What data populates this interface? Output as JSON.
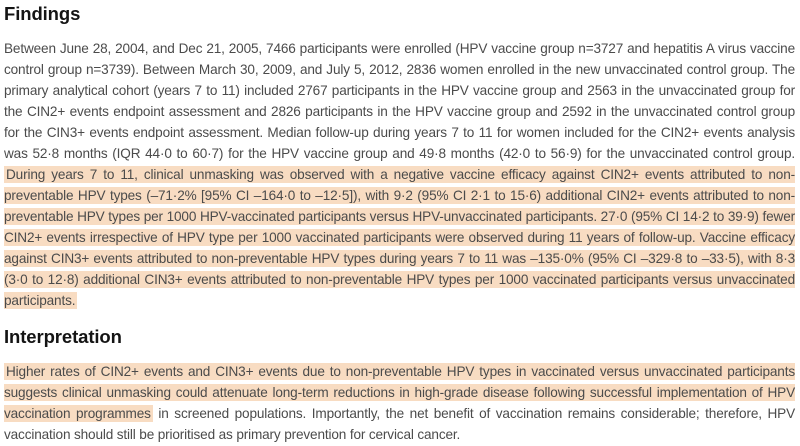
{
  "page": {
    "background_color": "#ffffff",
    "body_text_color": "#4b4b4b",
    "heading_color": "#141414",
    "highlight_color": "#f8dcc2"
  },
  "sections": [
    {
      "heading": "Findings",
      "runs": [
        {
          "highlight": false,
          "text": "Between June 28, 2004, and Dec 21, 2005, 7466 participants were enrolled (HPV vaccine group n=3727 and hepatitis A virus vaccine control group n=3739). Between March 30, 2009, and July 5, 2012, 2836 women enrolled in the new unvaccinated control group. The primary analytical cohort (years 7 to 11) included 2767 participants in the HPV vaccine group and 2563 in the unvaccinated group for the CIN2+ events endpoint assessment and 2826 participants in the HPV vaccine group and 2592 in the unvaccinated control group for the CIN3+ events endpoint assessment. Median follow-up during years 7 to 11 for women included for the CIN2+ events analysis was 52·8 months (IQR 44·0 to 60·7) for the HPV vaccine group and 49·8 months (42·0 to 56·9) for the unvaccinated control group. "
        },
        {
          "highlight": true,
          "text": "During years 7 to 11, clinical unmasking was observed with a negative vaccine efficacy against CIN2+ events attributed to non-preventable HPV types (–71·2% [95% CI –164·0 to –12·5]), with 9·2 (95% CI 2·1 to 15·6) additional CIN2+ events attributed to non-preventable HPV types per 1000 HPV-vaccinated participants versus HPV-unvaccinated participants. 27·0 (95% CI 14·2 to 39·9) fewer CIN2+ events irrespective of HPV type per 1000 vaccinated participants were observed during 11 years of follow-up. Vaccine efficacy against CIN3+ events attributed to non-preventable HPV types during years 7 to 11 was –135·0% (95% CI –329·8 to –33·5), with 8·3 (3·0 to 12·8) additional CIN3+ events attributed to non-preventable HPV types per 1000 vaccinated participants versus unvaccinated participants."
        }
      ]
    },
    {
      "heading": "Interpretation",
      "runs": [
        {
          "highlight": true,
          "text": "Higher rates of CIN2+ events and CIN3+ events due to non-preventable HPV types in vaccinated versus unvaccinated participants suggests clinical unmasking could attenuate long-term reductions in high-grade disease following successful implementation of HPV vaccination programmes"
        },
        {
          "highlight": false,
          "text": " in screened populations. Importantly, the net benefit of vaccination remains considerable; therefore, HPV vaccination should still be prioritised as primary prevention for cervical cancer."
        }
      ]
    }
  ]
}
